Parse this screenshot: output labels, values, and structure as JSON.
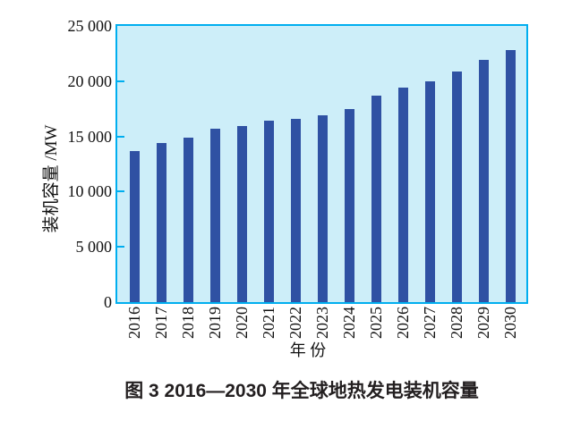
{
  "caption": "图 3  2016—2030 年全球地热发电装机容量",
  "chart_data": {
    "type": "bar",
    "title": "",
    "xlabel": "年 份",
    "ylabel": "装机容量 /MW",
    "categories": [
      "2016",
      "2017",
      "2018",
      "2019",
      "2020",
      "2021",
      "2022",
      "2023",
      "2024",
      "2025",
      "2026",
      "2027",
      "2028",
      "2029",
      "2030"
    ],
    "values": [
      13700,
      14400,
      14900,
      15700,
      15900,
      16400,
      16600,
      16900,
      17500,
      18700,
      19400,
      20000,
      20900,
      21900,
      22800
    ],
    "unit": "MW",
    "ylim": [
      0,
      25000
    ],
    "ytick_interval": 5000,
    "yticks": [
      0,
      5000,
      10000,
      15000,
      20000,
      25000
    ],
    "ytick_labels": [
      "0",
      "5 000",
      "10 000",
      "15 000",
      "20 000",
      "25 000"
    ],
    "grid": false,
    "legend": "none",
    "colors": {
      "bar": "#2F51A3",
      "plot_background": "#CDEEF9",
      "plot_border": "#00AEEF",
      "text": "#111111"
    }
  }
}
